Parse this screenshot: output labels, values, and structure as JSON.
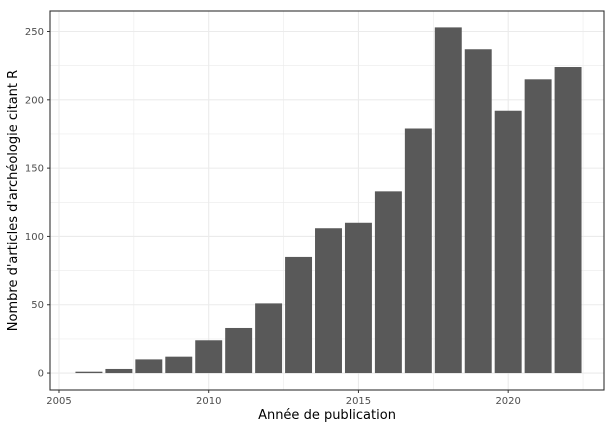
{
  "chart_data": {
    "type": "bar",
    "xlabel": "Année de publication",
    "ylabel": "Nombre d'articles d'archéologie citant R",
    "x": [
      2006,
      2007,
      2008,
      2009,
      2010,
      2011,
      2012,
      2013,
      2014,
      2015,
      2016,
      2017,
      2018,
      2019,
      2020,
      2021,
      2022
    ],
    "values": [
      1,
      3,
      10,
      12,
      24,
      33,
      51,
      85,
      106,
      110,
      133,
      179,
      253,
      237,
      192,
      215,
      224
    ],
    "xlim": [
      2004.7,
      2023.2
    ],
    "ylim": [
      -12.4,
      265
    ],
    "xticks": [
      2005,
      2010,
      2015,
      2020
    ],
    "yticks": [
      0,
      50,
      100,
      150,
      200,
      250
    ],
    "grid": true,
    "bar_color": "#595959",
    "panel_border_color": "#333333",
    "grid_color": "#ebebeb"
  }
}
